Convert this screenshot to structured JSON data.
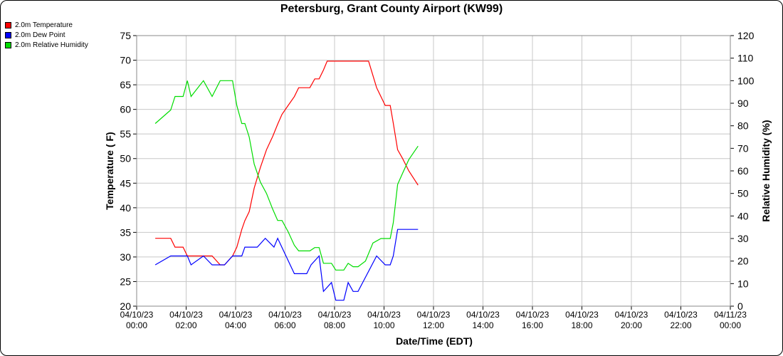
{
  "chart_data": {
    "type": "line",
    "title": "Petersburg, Grant County Airport (KW99)",
    "xlabel": "Date/Time (EDT)",
    "ylabel_left": "Temperature ( F)",
    "ylabel_right": "Relative Humidity (%)",
    "ylim_left": [
      20,
      75
    ],
    "ylim_right": [
      0,
      120
    ],
    "yticks_left": [
      "20",
      "25",
      "30",
      "35",
      "40",
      "45",
      "50",
      "55",
      "60",
      "65",
      "70",
      "75"
    ],
    "yticks_right": [
      "0",
      "10",
      "20",
      "30",
      "40",
      "50",
      "60",
      "70",
      "80",
      "90",
      "100",
      "110",
      "120"
    ],
    "xlim_hours": [
      0,
      48
    ],
    "xticks": [
      {
        "date": "04/10/23",
        "time": "00:00"
      },
      {
        "date": "04/10/23",
        "time": "02:00"
      },
      {
        "date": "04/10/23",
        "time": "04:00"
      },
      {
        "date": "04/10/23",
        "time": "06:00"
      },
      {
        "date": "04/10/23",
        "time": "08:00"
      },
      {
        "date": "04/10/23",
        "time": "10:00"
      },
      {
        "date": "04/10/23",
        "time": "12:00"
      },
      {
        "date": "04/10/23",
        "time": "14:00"
      },
      {
        "date": "04/10/23",
        "time": "16:00"
      },
      {
        "date": "04/10/23",
        "time": "18:00"
      },
      {
        "date": "04/10/23",
        "time": "20:00"
      },
      {
        "date": "04/10/23",
        "time": "22:00"
      },
      {
        "date": "04/11/23",
        "time": "00:00"
      }
    ],
    "grid": true,
    "legend_position": "top-left",
    "series": [
      {
        "name": "2.0m Temperature",
        "color": "#ff0000",
        "axis": "left",
        "points": [
          [
            1.5,
            33.8
          ],
          [
            2.75,
            33.8
          ],
          [
            3.1,
            32
          ],
          [
            3.75,
            32
          ],
          [
            4.1,
            30.2
          ],
          [
            6.1,
            30.2
          ],
          [
            6.75,
            28.4
          ],
          [
            7.1,
            28.4
          ],
          [
            7.75,
            30.2
          ],
          [
            8.1,
            32
          ],
          [
            8.5,
            35.6
          ],
          [
            8.75,
            37.4
          ],
          [
            9.1,
            39.2
          ],
          [
            9.5,
            44.0
          ],
          [
            10.0,
            48.2
          ],
          [
            10.5,
            51.8
          ],
          [
            11.0,
            54.5
          ],
          [
            11.4,
            57
          ],
          [
            11.75,
            59
          ],
          [
            12.25,
            60.8
          ],
          [
            12.75,
            62.6
          ],
          [
            13.1,
            64.4
          ],
          [
            14.0,
            64.4
          ],
          [
            14.4,
            66.2
          ],
          [
            14.75,
            66.2
          ],
          [
            15.1,
            68
          ],
          [
            15.4,
            69.8
          ],
          [
            17.75,
            69.8
          ],
          [
            18.75,
            69.8
          ],
          [
            19.4,
            64.4
          ],
          [
            20.1,
            60.8
          ],
          [
            20.5,
            60.8
          ],
          [
            20.75,
            57.2
          ],
          [
            21.1,
            51.8
          ],
          [
            21.5,
            50
          ],
          [
            22.0,
            47.5
          ],
          [
            22.75,
            44.6
          ]
        ]
      },
      {
        "name": "2.0m Dew Point",
        "color": "#0000ff",
        "axis": "left",
        "points": [
          [
            1.5,
            28.4
          ],
          [
            2.75,
            30.2
          ],
          [
            4.1,
            30.2
          ],
          [
            4.4,
            28.4
          ],
          [
            5.4,
            30.2
          ],
          [
            6.1,
            28.4
          ],
          [
            7.1,
            28.4
          ],
          [
            7.75,
            30.2
          ],
          [
            8.5,
            30.2
          ],
          [
            8.75,
            32
          ],
          [
            9.75,
            32
          ],
          [
            10.4,
            33.8
          ],
          [
            11.1,
            32
          ],
          [
            11.4,
            33.8
          ],
          [
            12.75,
            26.6
          ],
          [
            13.75,
            26.6
          ],
          [
            14.1,
            28.4
          ],
          [
            14.75,
            30.2
          ],
          [
            15.1,
            23
          ],
          [
            15.75,
            24.8
          ],
          [
            16.1,
            21.2
          ],
          [
            16.75,
            21.2
          ],
          [
            17.1,
            24.8
          ],
          [
            17.5,
            23
          ],
          [
            17.9,
            23
          ],
          [
            19.4,
            30.2
          ],
          [
            20.1,
            28.4
          ],
          [
            20.5,
            28.4
          ],
          [
            20.75,
            30.2
          ],
          [
            21.1,
            35.6
          ],
          [
            22.75,
            35.6
          ]
        ]
      },
      {
        "name": "2.0m Relative Humidity",
        "color": "#00dd00",
        "axis": "right",
        "points": [
          [
            1.5,
            81
          ],
          [
            2.75,
            87
          ],
          [
            3.1,
            93
          ],
          [
            3.75,
            93
          ],
          [
            4.1,
            100
          ],
          [
            4.4,
            93
          ],
          [
            5.4,
            100
          ],
          [
            6.1,
            93
          ],
          [
            6.75,
            100
          ],
          [
            7.75,
            100
          ],
          [
            8.1,
            89
          ],
          [
            8.5,
            81
          ],
          [
            8.75,
            81
          ],
          [
            9.1,
            75
          ],
          [
            9.5,
            63
          ],
          [
            10.0,
            55
          ],
          [
            10.5,
            50
          ],
          [
            11.0,
            43
          ],
          [
            11.4,
            38
          ],
          [
            11.75,
            38
          ],
          [
            12.25,
            33
          ],
          [
            12.75,
            27
          ],
          [
            13.1,
            24.5
          ],
          [
            13.75,
            24.5
          ],
          [
            14.0,
            24.5
          ],
          [
            14.4,
            26
          ],
          [
            14.75,
            26
          ],
          [
            15.1,
            19
          ],
          [
            15.75,
            19
          ],
          [
            16.1,
            16
          ],
          [
            16.75,
            16
          ],
          [
            17.1,
            19
          ],
          [
            17.5,
            17.5
          ],
          [
            17.9,
            17.5
          ],
          [
            18.5,
            20
          ],
          [
            19.1,
            28
          ],
          [
            19.75,
            30
          ],
          [
            20.1,
            30
          ],
          [
            20.5,
            30
          ],
          [
            20.75,
            37
          ],
          [
            21.1,
            54
          ],
          [
            21.5,
            59
          ],
          [
            22.0,
            65
          ],
          [
            22.75,
            71
          ]
        ]
      }
    ]
  }
}
